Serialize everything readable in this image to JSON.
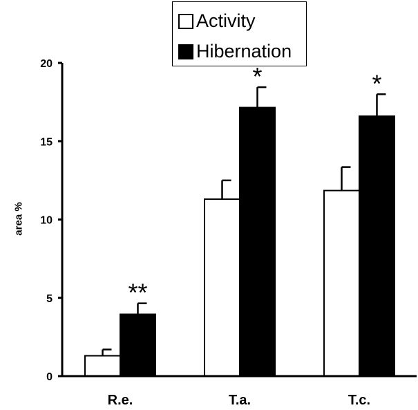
{
  "chart_data": {
    "type": "bar",
    "categories": [
      "R.e.",
      "T.a.",
      "T.c."
    ],
    "series": [
      {
        "name": "Activity",
        "values": [
          1.3,
          11.3,
          11.85
        ],
        "errors": [
          0.4,
          1.2,
          1.5
        ],
        "color": "#ffffff"
      },
      {
        "name": "Hibernation",
        "values": [
          3.95,
          17.15,
          16.6
        ],
        "errors": [
          0.7,
          1.3,
          1.4
        ],
        "color": "#000000"
      }
    ],
    "significance": [
      "**",
      "*",
      "*"
    ],
    "ylabel": "area %",
    "ylim": [
      0,
      20
    ],
    "yticks": [
      0,
      5,
      10,
      15,
      20
    ],
    "legend_position": "top-center",
    "grid": false
  }
}
